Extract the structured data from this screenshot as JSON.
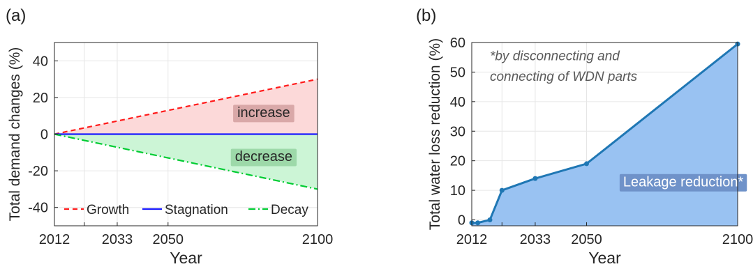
{
  "panels": [
    {
      "label": "(a)"
    },
    {
      "label": "(b)"
    }
  ],
  "colors": {
    "growth": "#ff1a1a",
    "stagnation": "#1a1aff",
    "decay": "#00cc33",
    "increase_fill": "#fcd9d9",
    "decrease_fill": "#ccf5d6",
    "leakage_fill": "#99c2f2",
    "leakage_line": "#1f77b4",
    "region_label_bg": "#d9a8a8",
    "region_label_bg_green": "#9dd9a9",
    "leakage_label_bg": "#6f92c9",
    "grid": "#e6e6e6"
  },
  "chart_data": [
    {
      "type": "line",
      "title": "",
      "xlabel": "Year",
      "ylabel": "Total demand changes (%)",
      "xlim": [
        2012,
        2100
      ],
      "ylim": [
        -50,
        50
      ],
      "xticks": [
        2012,
        2033,
        2050,
        2100
      ],
      "xgrid": [
        2012,
        2022,
        2033,
        2050,
        2100
      ],
      "yticks": [
        -40,
        -20,
        0,
        20,
        40
      ],
      "grid": true,
      "legend_position": "bottom",
      "series": [
        {
          "name": "Growth",
          "style": "dashed",
          "color_key": "growth",
          "x": [
            2012,
            2100
          ],
          "y": [
            0,
            30
          ]
        },
        {
          "name": "Stagnation",
          "style": "solid",
          "color_key": "stagnation",
          "x": [
            2012,
            2100
          ],
          "y": [
            0,
            0
          ]
        },
        {
          "name": "Decay",
          "style": "dashdot",
          "color_key": "decay",
          "x": [
            2012,
            2100
          ],
          "y": [
            0,
            -30
          ]
        }
      ],
      "annotations": [
        {
          "text": "increase",
          "x": 2082,
          "y": 12
        },
        {
          "text": "decrease",
          "x": 2082,
          "y": -12
        }
      ]
    },
    {
      "type": "area",
      "title": "",
      "xlabel": "Year",
      "ylabel": "Total water loss reduction (%)",
      "xlim": [
        2012,
        2100
      ],
      "ylim": [
        -2,
        60
      ],
      "xticks": [
        2012,
        2033,
        2050,
        2100
      ],
      "xgrid": [
        2012,
        2022,
        2033,
        2050,
        2100
      ],
      "yticks": [
        0,
        10,
        20,
        30,
        40,
        50,
        60
      ],
      "grid": true,
      "series": [
        {
          "name": "",
          "x": [
            2012,
            2014,
            2018,
            2022,
            2033,
            2050,
            2100
          ],
          "y": [
            -1,
            -1,
            0,
            10,
            14,
            19,
            59.5
          ]
        }
      ],
      "annotations": [
        {
          "text": "*by disconnecting and",
          "x": 2018,
          "y": 54
        },
        {
          "text": "connecting of WDN parts",
          "x": 2018,
          "y": 47
        },
        {
          "text": "Leakage reduction*",
          "x": 2082,
          "y": 13
        }
      ]
    }
  ]
}
